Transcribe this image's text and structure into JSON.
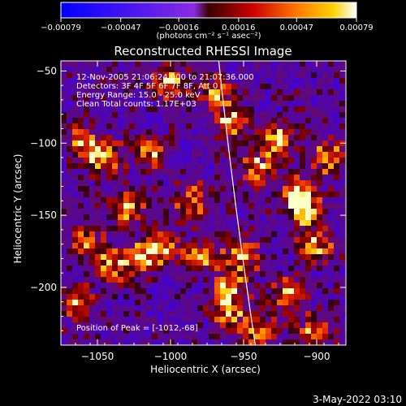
{
  "chart_data": {
    "type": "heatmap",
    "title": "Reconstructed RHESSI Image",
    "xlabel": "Heliocentric X (arcsec)",
    "ylabel": "Heliocentric Y (arcsec)",
    "xlim": [
      -1075,
      -880
    ],
    "ylim": [
      -240,
      -43
    ],
    "xticks": [
      -1050,
      -1000,
      -950,
      -900
    ],
    "xtick_labels": [
      "−1050",
      "−1000",
      "−950",
      "−900"
    ],
    "yticks": [
      -50,
      -100,
      -150,
      -200
    ],
    "ytick_labels": [
      "−50",
      "−100",
      "−150",
      "−200"
    ],
    "colorbar": {
      "range": [
        -0.00079,
        0.00079
      ],
      "ticks": [
        -0.00079,
        -0.00047,
        -0.00016,
        0.00016,
        0.00047,
        0.00079
      ],
      "tick_labels": [
        "−0.00079",
        "−0.00047",
        "−0.00016",
        "0.00016",
        "0.00047",
        "0.00079"
      ],
      "unit_label": "(photons cm⁻² s⁻¹ asec⁻²)",
      "colormap": "red-temperature"
    },
    "annotations": [
      "12-Nov-2005 21:06:24.000 to 21:07:36.000",
      "Detectors: 3F 4F 5F 6F 7F 8F, Att 0",
      "Energy Range: 15.0 - 25.0 keV",
      "Clean    Total counts: 1.17E+03"
    ],
    "peak_label": "Position of Peak = [-1012,-68]",
    "peak": {
      "x": -1012,
      "y": -68
    },
    "limb": {
      "x_at_top": -967,
      "x_at_bottom": -942
    },
    "bright_regions": [
      {
        "x": -1000,
        "y": -58
      },
      {
        "x": -968,
        "y": -65
      },
      {
        "x": -958,
        "y": -85
      },
      {
        "x": -940,
        "y": -118
      },
      {
        "x": -928,
        "y": -98
      },
      {
        "x": -912,
        "y": -135
      },
      {
        "x": -908,
        "y": -148
      },
      {
        "x": -900,
        "y": -170
      },
      {
        "x": -893,
        "y": -110
      },
      {
        "x": -1058,
        "y": -168
      },
      {
        "x": -1040,
        "y": -185
      },
      {
        "x": -1020,
        "y": -180
      },
      {
        "x": -1005,
        "y": -172
      },
      {
        "x": -978,
        "y": -178
      },
      {
        "x": -960,
        "y": -200
      },
      {
        "x": -950,
        "y": -178
      },
      {
        "x": -960,
        "y": -218
      },
      {
        "x": -940,
        "y": -232
      },
      {
        "x": -900,
        "y": -230
      },
      {
        "x": -1045,
        "y": -110
      },
      {
        "x": -1060,
        "y": -100
      },
      {
        "x": -1015,
        "y": -105
      },
      {
        "x": -1030,
        "y": -145
      },
      {
        "x": -1065,
        "y": -210
      },
      {
        "x": -920,
        "y": -205
      },
      {
        "x": -985,
        "y": -140
      }
    ]
  },
  "footer": {
    "timestamp": "3-May-2022 03:10"
  }
}
